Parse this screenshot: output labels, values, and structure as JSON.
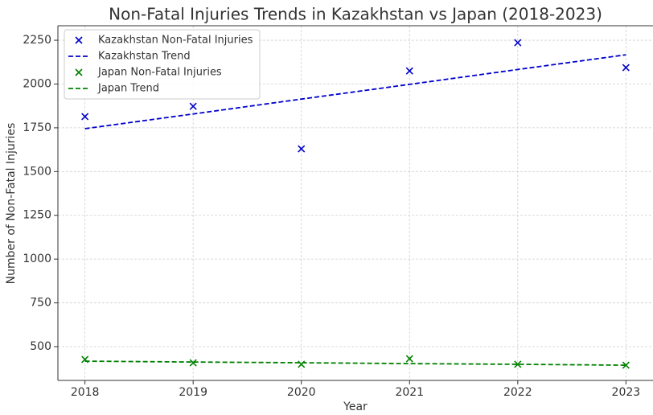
{
  "chart_data": {
    "type": "scatter",
    "title": "Non-Fatal Injuries Trends in Kazakhstan vs Japan (2018-2023)",
    "xlabel": "Year",
    "ylabel": "Number of Non-Fatal Injuries",
    "x": [
      2018,
      2019,
      2020,
      2021,
      2022,
      2023
    ],
    "series": [
      {
        "name": "Kazakhstan Non-Fatal Injuries",
        "color": "#0000cc",
        "marker": "x",
        "values": [
          1814,
          1873,
          1630,
          2075,
          2236,
          2094
        ]
      },
      {
        "name": "Kazakhstan Trend",
        "color": "#0000cc",
        "linestyle": "dashed",
        "values": [
          1745,
          1829,
          1914,
          1998,
          2083,
          2167
        ]
      },
      {
        "name": "Japan Non-Fatal Injuries",
        "color": "#008000",
        "marker": "x",
        "values": [
          427,
          408,
          399,
          431,
          399,
          394
        ]
      },
      {
        "name": "Japan Trend",
        "color": "#008000",
        "linestyle": "dashed",
        "values": [
          417,
          412,
          408,
          403,
          399,
          394
        ]
      }
    ],
    "xlim": [
      2017.75,
      2023.25
    ],
    "xticks": [
      2018,
      2019,
      2020,
      2021,
      2022,
      2023
    ],
    "ylim": [
      307,
      2333
    ],
    "yticks": [
      500,
      750,
      1000,
      1250,
      1500,
      1750,
      2000,
      2250
    ],
    "grid": true,
    "legend": "upper left"
  }
}
